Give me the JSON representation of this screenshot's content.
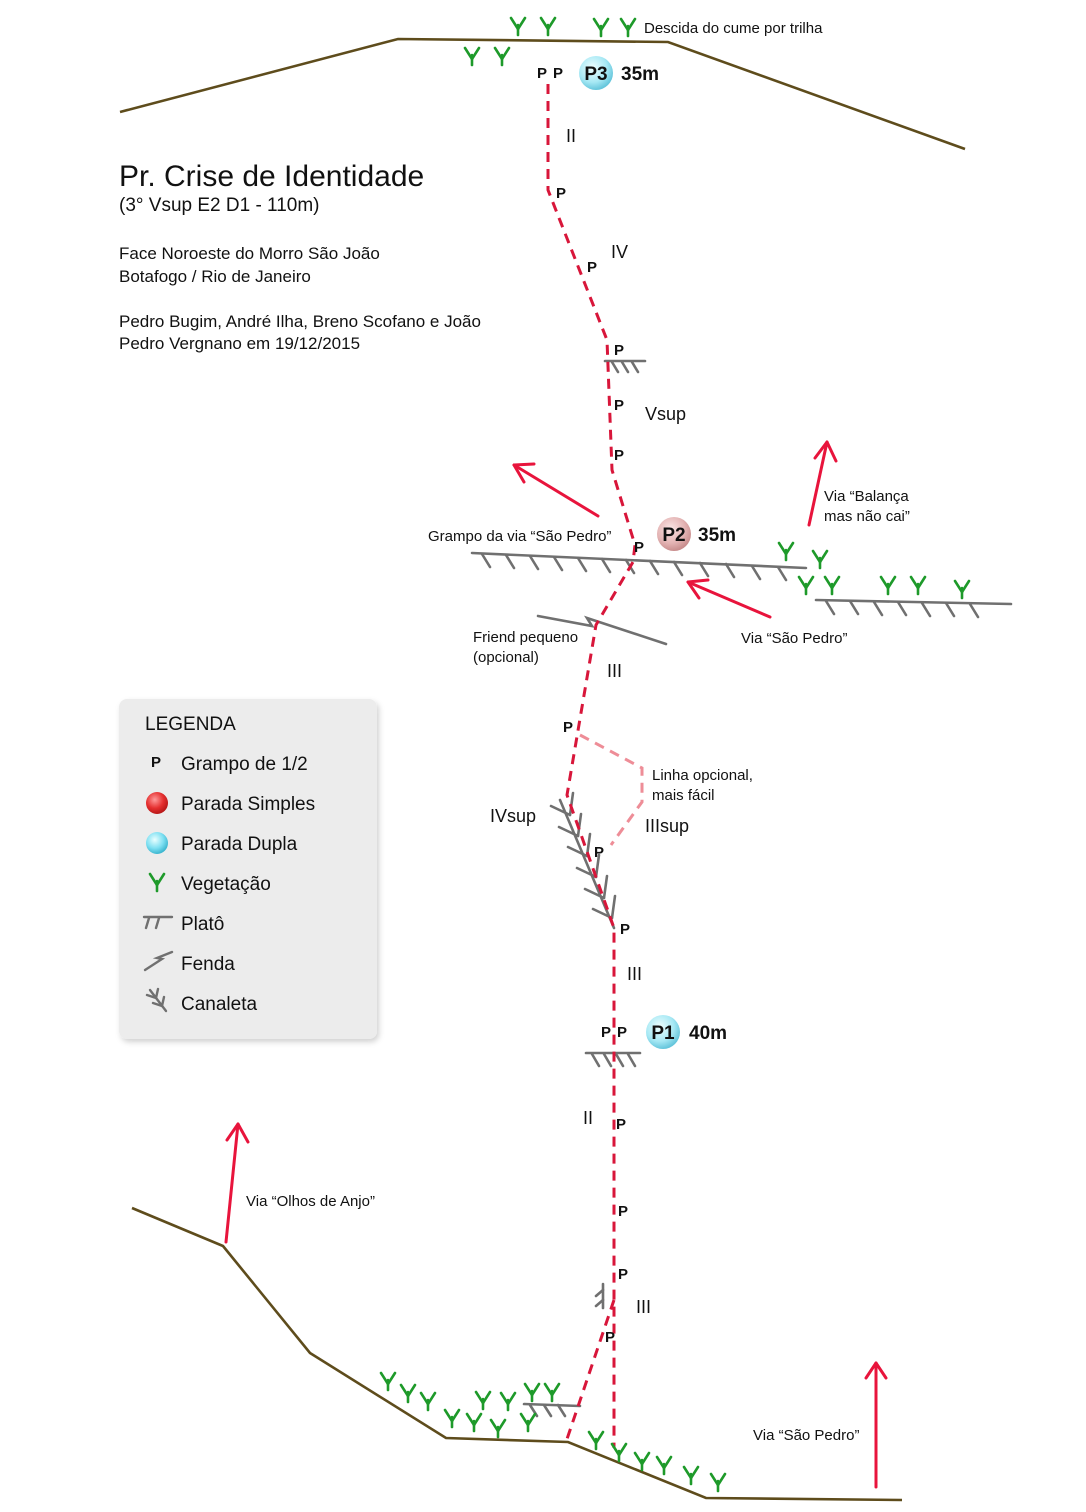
{
  "header": {
    "title": "Pr. Crise de Identidade",
    "subtitle": "(3° Vsup E2 D1 - 110m)",
    "location_1": "Face Noroeste do Morro São João",
    "location_2": "Botafogo / Rio de Janeiro",
    "authors_1": "Pedro Bugim, André Ilha, Breno Scofano e João",
    "authors_2": "Pedro Vergnano em 19/12/2015"
  },
  "notes": {
    "descida": "Descida do cume por trilha",
    "grampo_sao_pedro": "Grampo da via “São Pedro”",
    "friend_1": "Friend pequeno",
    "friend_2": "(opcional)",
    "balanca_1": "Via “Balança",
    "balanca_2": "mas não cai”",
    "sao_pedro_mid": "Via “São Pedro”",
    "linha_1": "Linha opcional,",
    "linha_2": "mais fácil",
    "olhos_anjo": "Via “Olhos de Anjo”",
    "sao_pedro_bottom": "Via “São Pedro”"
  },
  "grades": {
    "g1": "II",
    "g2": "IV",
    "g3": "Vsup",
    "g4": "III",
    "g5": "IVsup",
    "g6": "IIIsup",
    "g7": "III",
    "g8": "II",
    "g9": "III"
  },
  "bolt_label": "P",
  "stops": {
    "p3": {
      "name": "P3",
      "length": "35m"
    },
    "p2": {
      "name": "P2",
      "length": "35m"
    },
    "p1": {
      "name": "P1",
      "length": "40m"
    }
  },
  "legend": {
    "heading": "LEGENDA",
    "bolt_symbol": "P",
    "items": [
      {
        "label": "Grampo de 1/2",
        "icon": "bolt-icon"
      },
      {
        "label": "Parada Simples",
        "icon": "single-anchor-icon"
      },
      {
        "label": "Parada Dupla",
        "icon": "double-anchor-icon"
      },
      {
        "label": "Vegetação",
        "icon": "vegetation-icon"
      },
      {
        "label": "Platô",
        "icon": "ledge-icon"
      },
      {
        "label": "Fenda",
        "icon": "crack-icon"
      },
      {
        "label": "Canaleta",
        "icon": "groove-icon"
      }
    ]
  },
  "colors": {
    "route": "#d8163a",
    "optional_route": "#ee8d97",
    "terrain": "#5e4c1c",
    "ledge": "#707070",
    "vegetation": "#1e9a2a",
    "arrow": "#e8143c",
    "single_anchor": "#e0b0b0",
    "double_anchor": "#a6e6f2",
    "legend_bg": "#ececec"
  }
}
